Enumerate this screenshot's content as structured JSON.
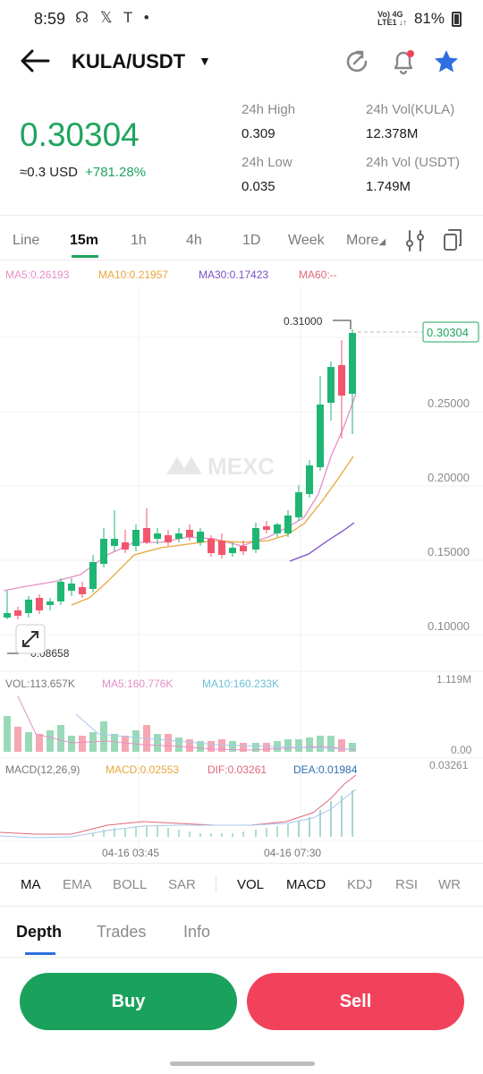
{
  "status": {
    "time": "8:59",
    "icons_text": "☊ 𝕏 T •",
    "net_top": "Vo) 4G",
    "net_bottom": "LTE1 ↓↑",
    "battery": "81%"
  },
  "header": {
    "pair": "KULA/USDT",
    "caret": "▼",
    "icons": [
      "back-arrow-icon",
      "refresh-icon",
      "bell-icon",
      "star-icon"
    ],
    "accent": "#2f6fe0",
    "badge_color": "#f2425b"
  },
  "price": {
    "last": "0.30304",
    "usd": "≈0.3 USD",
    "change": "+781.28%",
    "color": "#1fa45f"
  },
  "stats": {
    "high_label": "24h High",
    "high_value": "0.309",
    "low_label": "24h Low",
    "low_value": "0.035",
    "vol_kula_label": "24h Vol(KULA)",
    "vol_kula_value": "12.378M",
    "vol_usdt_label": "24h Vol (USDT)",
    "vol_usdt_value": "1.749M"
  },
  "time_tabs": [
    "Line",
    "15m",
    "1h",
    "4h",
    "1D",
    "Week",
    "More"
  ],
  "time_tab_active": "15m",
  "ma_legend": {
    "ma5": "MA5:0.26193",
    "ma10": "MA10:0.21957",
    "ma30": "MA30:0.17423",
    "ma60": "MA60:--",
    "colors": {
      "ma5": "#e58fc7",
      "ma10": "#e9a63c",
      "ma30": "#7b4fc7",
      "ma60": "#e0687a"
    }
  },
  "chart": {
    "price_axis": [
      "0.25000",
      "0.20000",
      "0.15000",
      "0.10000"
    ],
    "high_marker": "0.31000",
    "low_marker": "0.08658",
    "last_price_tag": "0.30304",
    "watermark": "MEXC",
    "up_color": "#1fb673",
    "down_color": "#f2566c",
    "vol_legend": {
      "vol": "VOL:113.657K",
      "ma5": "MA5:160.776K",
      "ma10": "MA10:160.233K"
    },
    "vol_axis_top": "1.119M",
    "vol_axis_bottom": "0.00",
    "macd_legend": {
      "name": "MACD(12,26,9)",
      "macd": "MACD:0.02553",
      "dif": "DIF:0.03261",
      "dea": "DEA:0.01984"
    },
    "macd_axis_top": "0.03261",
    "time_labels": [
      "04-16 03:45",
      "04-16 07:30"
    ],
    "expand_icon": "expand-icon"
  },
  "indicator_tabs": {
    "main": [
      "MA",
      "EMA",
      "BOLL",
      "SAR"
    ],
    "sub": [
      "VOL",
      "MACD",
      "KDJ",
      "RSI",
      "WR"
    ]
  },
  "bottom_tabs": [
    "Depth",
    "Trades",
    "Info"
  ],
  "actions": {
    "buy": "Buy",
    "sell": "Sell"
  }
}
